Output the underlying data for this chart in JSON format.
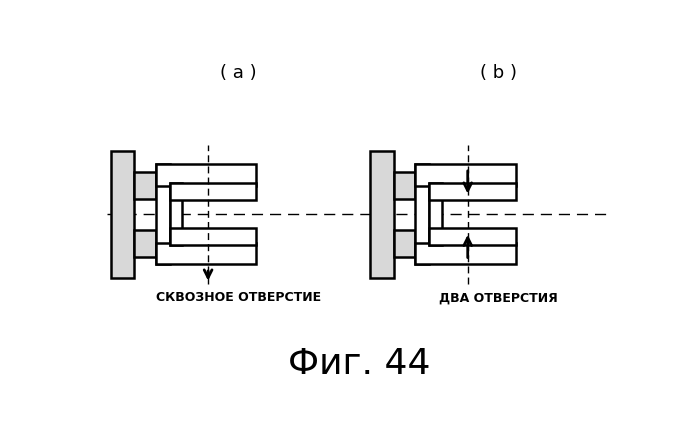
{
  "title_a": "( a )",
  "title_b": "( b )",
  "label_a": "СКВОЗНОЕ ОТВЕРСТИЕ",
  "label_b": "ДВА ОТВЕРСТИЯ",
  "fig_label": "Фиг. 44",
  "bg_color": "#ffffff",
  "line_color": "#000000"
}
